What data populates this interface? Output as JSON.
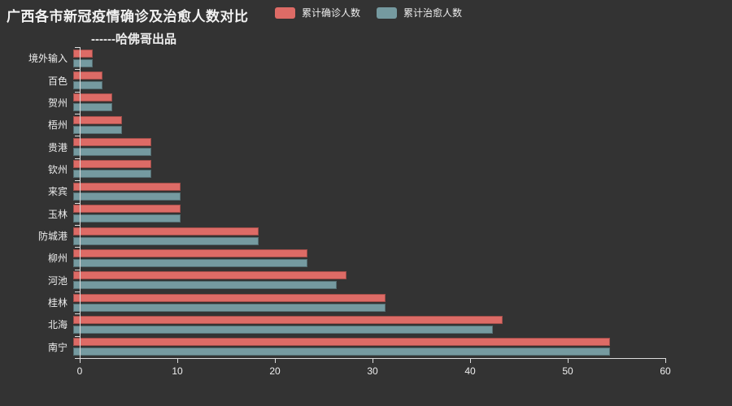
{
  "title": "广西各市新冠疫情确诊及治愈人数对比",
  "subtitle": "------哈佛哥出品",
  "legend": [
    {
      "label": "累计确诊人数",
      "color": "#dd6b66"
    },
    {
      "label": "累计治愈人数",
      "color": "#759aa0"
    }
  ],
  "colors": {
    "background": "#333333",
    "confirmed_bar": "#dd6b66",
    "cured_bar": "#759aa0",
    "axis": "#dddddd",
    "text": "#eeeeee"
  },
  "chart_data": {
    "type": "bar",
    "orientation": "horizontal",
    "title": "广西各市新冠疫情确诊及治愈人数对比",
    "subtitle": "------哈佛哥出品",
    "categories_top_to_bottom": [
      "境外输入",
      "百色",
      "贺州",
      "梧州",
      "贵港",
      "钦州",
      "来宾",
      "玉林",
      "防城港",
      "柳州",
      "河池",
      "桂林",
      "北海",
      "南宁"
    ],
    "series": [
      {
        "name": "累计确诊人数",
        "color": "#dd6b66",
        "values": [
          2,
          3,
          4,
          5,
          8,
          8,
          11,
          11,
          19,
          24,
          28,
          32,
          44,
          55
        ]
      },
      {
        "name": "累计治愈人数",
        "color": "#759aa0",
        "values": [
          2,
          3,
          4,
          5,
          8,
          8,
          11,
          11,
          19,
          24,
          27,
          32,
          43,
          55
        ]
      }
    ],
    "xlabel": "",
    "ylabel": "",
    "xlim": [
      0,
      60
    ],
    "x_ticks": [
      0,
      10,
      20,
      30,
      40,
      50,
      60
    ],
    "grid": false,
    "legend_position": "top-center"
  }
}
